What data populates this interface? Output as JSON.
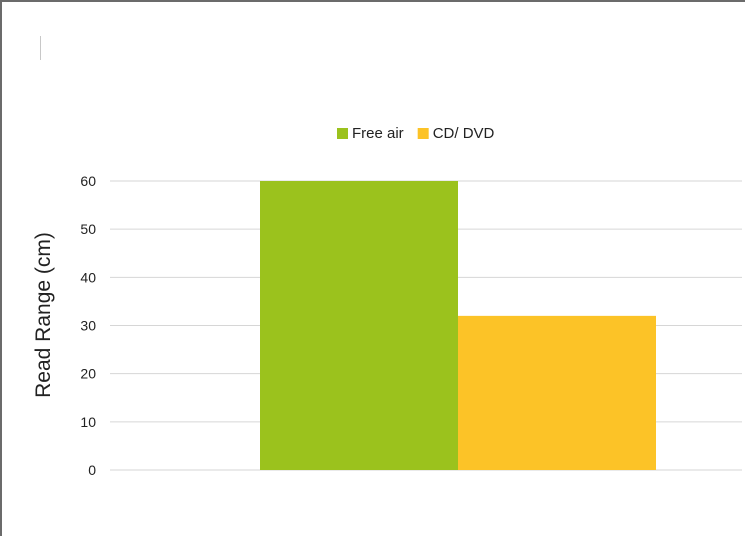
{
  "chart_data": {
    "type": "bar",
    "categories": [
      ""
    ],
    "series": [
      {
        "name": "Free air",
        "values": [
          60
        ],
        "color": "#9bc21d"
      },
      {
        "name": "CD/ DVD",
        "values": [
          32
        ],
        "color": "#fcc327"
      }
    ],
    "title": "",
    "xlabel": "",
    "ylabel": "Read Range (cm)",
    "ylim": [
      0,
      60
    ],
    "yticks": [
      0,
      10,
      20,
      30,
      40,
      50,
      60
    ],
    "grid": true,
    "legend_position": "top-center",
    "gridline_color": "#d6d6d6"
  }
}
